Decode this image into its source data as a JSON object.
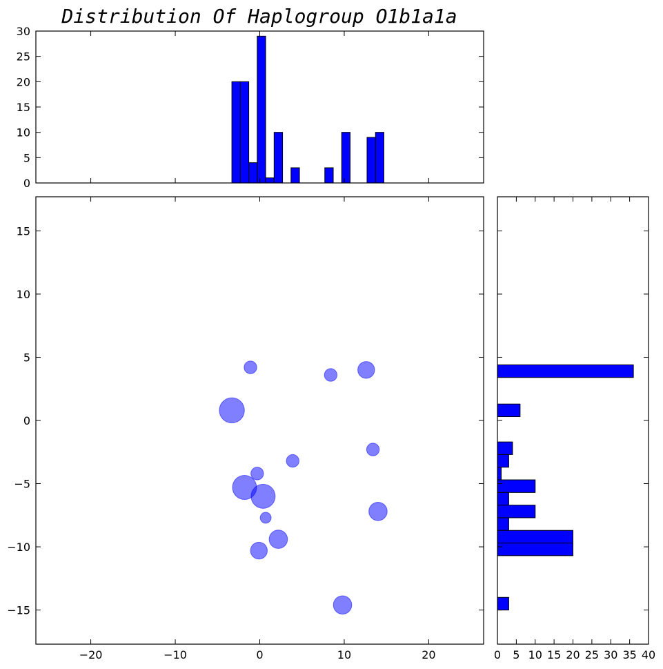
{
  "chart_data": [
    {
      "type": "scatter",
      "name": "main",
      "title": "",
      "xlabel": "",
      "ylabel": "",
      "xlim": [
        -26.5,
        26.5
      ],
      "ylim": [
        -17.7,
        17.7
      ],
      "xticks": [
        -20,
        -10,
        0,
        10,
        20
      ],
      "yticks": [
        -15,
        -10,
        -5,
        0,
        5,
        10,
        15
      ],
      "color": "#0000ff",
      "alpha": 0.5,
      "points": [
        {
          "x": -1.1,
          "y": 4.2,
          "size": 1
        },
        {
          "x": 8.4,
          "y": 3.6,
          "size": 1
        },
        {
          "x": 12.6,
          "y": 4.0,
          "size": 3
        },
        {
          "x": -3.3,
          "y": 0.8,
          "size": 10
        },
        {
          "x": 13.4,
          "y": -2.3,
          "size": 1
        },
        {
          "x": 3.9,
          "y": -3.2,
          "size": 1
        },
        {
          "x": -0.3,
          "y": -4.2,
          "size": 1
        },
        {
          "x": -1.8,
          "y": -5.3,
          "size": 9
        },
        {
          "x": 0.4,
          "y": -6.0,
          "size": 9
        },
        {
          "x": 14.0,
          "y": -7.2,
          "size": 4
        },
        {
          "x": 0.7,
          "y": -7.7,
          "size": 0.5
        },
        {
          "x": 2.2,
          "y": -9.4,
          "size": 4
        },
        {
          "x": -0.1,
          "y": -10.3,
          "size": 3
        },
        {
          "x": 9.8,
          "y": -14.6,
          "size": 4
        }
      ]
    },
    {
      "type": "bar",
      "name": "top-histogram",
      "title": "Distribution Of Haplogroup O1b1a1a",
      "xlim": [
        -26.5,
        26.5
      ],
      "ylim": [
        0,
        30
      ],
      "yticks": [
        0,
        5,
        10,
        15,
        20,
        25,
        30
      ],
      "color": "#0000ff",
      "bins": [
        {
          "x0": -3.3,
          "x1": -2.3,
          "value": 20
        },
        {
          "x0": -2.3,
          "x1": -1.3,
          "value": 20
        },
        {
          "x0": -1.3,
          "x1": -0.3,
          "value": 4
        },
        {
          "x0": -0.3,
          "x1": 0.7,
          "value": 29
        },
        {
          "x0": 0.7,
          "x1": 1.7,
          "value": 1
        },
        {
          "x0": 1.7,
          "x1": 2.7,
          "value": 10
        },
        {
          "x0": 3.7,
          "x1": 4.7,
          "value": 3
        },
        {
          "x0": 7.7,
          "x1": 8.7,
          "value": 3
        },
        {
          "x0": 9.7,
          "x1": 10.7,
          "value": 10
        },
        {
          "x0": 12.7,
          "x1": 13.7,
          "value": 9
        },
        {
          "x0": 13.7,
          "x1": 14.7,
          "value": 10
        }
      ]
    },
    {
      "type": "bar",
      "name": "right-histogram",
      "orientation": "horizontal",
      "xlim": [
        0,
        40
      ],
      "ylim": [
        -17.7,
        17.7
      ],
      "xticks": [
        0,
        5,
        10,
        15,
        20,
        25,
        30,
        35,
        40
      ],
      "color": "#0000ff",
      "bins": [
        {
          "y0": 3.4,
          "y1": 4.4,
          "value": 36
        },
        {
          "y0": 0.3,
          "y1": 1.3,
          "value": 6
        },
        {
          "y0": -2.7,
          "y1": -1.7,
          "value": 4
        },
        {
          "y0": -3.7,
          "y1": -2.7,
          "value": 3
        },
        {
          "y0": -4.7,
          "y1": -3.7,
          "value": 1
        },
        {
          "y0": -5.7,
          "y1": -4.7,
          "value": 10
        },
        {
          "y0": -6.7,
          "y1": -5.7,
          "value": 3
        },
        {
          "y0": -7.7,
          "y1": -6.7,
          "value": 10
        },
        {
          "y0": -8.7,
          "y1": -7.7,
          "value": 3
        },
        {
          "y0": -9.7,
          "y1": -8.7,
          "value": 20
        },
        {
          "y0": -10.7,
          "y1": -9.7,
          "value": 20
        },
        {
          "y0": -15.0,
          "y1": -14.0,
          "value": 3
        }
      ]
    }
  ]
}
